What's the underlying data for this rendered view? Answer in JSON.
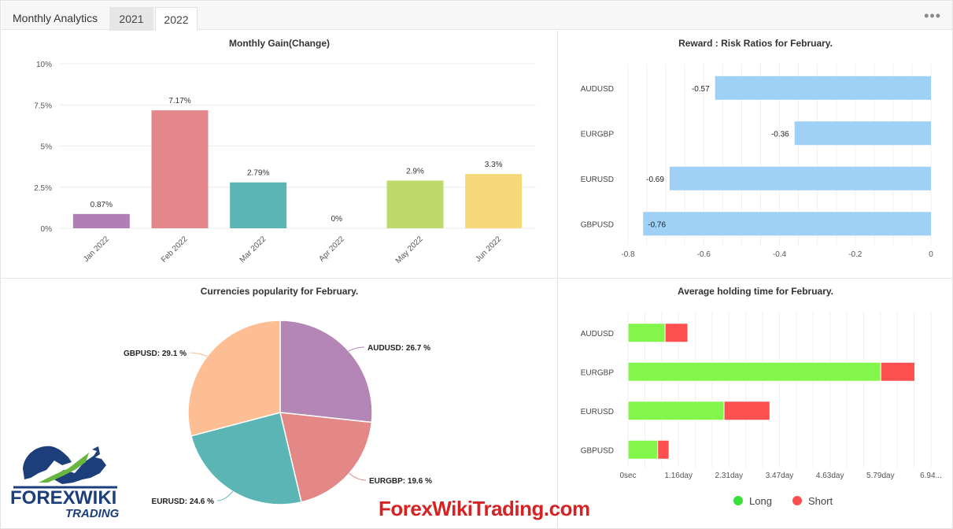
{
  "header": {
    "title": "Monthly Analytics",
    "tabs": [
      {
        "label": "2021",
        "active": false
      },
      {
        "label": "2022",
        "active": true
      }
    ],
    "more_icon": "more-horizontal-icon"
  },
  "panels": {
    "monthly_gain": {
      "title": "Monthly Gain(Change)"
    },
    "risk_ratio": {
      "title": "Reward : Risk Ratios for February."
    },
    "popularity": {
      "title": "Currencies popularity for February."
    },
    "holding": {
      "title": "Average holding time for February."
    }
  },
  "chart_data": [
    {
      "id": "monthly_gain",
      "type": "bar",
      "title": "Monthly Gain(Change)",
      "categories": [
        "Jan 2022",
        "Feb 2022",
        "Mar 2022",
        "Apr 2022",
        "May 2022",
        "Jun 2022"
      ],
      "values": [
        0.87,
        7.17,
        2.79,
        0,
        2.9,
        3.3
      ],
      "value_labels": [
        "0.87%",
        "7.17%",
        "2.79%",
        "0%",
        "2.9%",
        "3.3%"
      ],
      "colors": [
        "#b07fb6",
        "#e3878a",
        "#5bb5b4",
        "#cccccc",
        "#bfd96b",
        "#f5d87a"
      ],
      "ylim": [
        0,
        10
      ],
      "yticks": [
        0,
        2.5,
        5,
        7.5,
        10
      ],
      "ytick_labels": [
        "0%",
        "2.5%",
        "5%",
        "7.5%",
        "10%"
      ],
      "grid": true
    },
    {
      "id": "risk_ratio",
      "type": "bar",
      "orientation": "horizontal",
      "title": "Reward : Risk Ratios for February.",
      "categories": [
        "AUDUSD",
        "EURGBP",
        "EURUSD",
        "GBPUSD"
      ],
      "values": [
        -0.57,
        -0.36,
        -0.69,
        -0.76
      ],
      "value_labels": [
        "-0.57",
        "-0.36",
        "-0.69",
        "-0.76"
      ],
      "color": "#9fd0f5",
      "xlim": [
        -0.8,
        0
      ],
      "xticks": [
        -0.8,
        -0.6,
        -0.4,
        -0.2,
        0
      ],
      "xtick_labels": [
        "-0.8",
        "-0.6",
        "-0.4",
        "-0.2",
        "0"
      ],
      "grid": true
    },
    {
      "id": "popularity",
      "type": "pie",
      "title": "Currencies popularity for February.",
      "slices": [
        {
          "label": "AUDUSD: 26.7 %",
          "value": 26.7,
          "color": "#b386b5"
        },
        {
          "label": "EURGBP: 19.6 %",
          "value": 19.6,
          "color": "#e38886"
        },
        {
          "label": "EURUSD: 24.6 %",
          "value": 24.6,
          "color": "#5ab5b4"
        },
        {
          "label": "GBPUSD: 29.1 %",
          "value": 29.1,
          "color": "#febe94"
        }
      ]
    },
    {
      "id": "holding",
      "type": "bar",
      "orientation": "horizontal",
      "stacked": true,
      "title": "Average holding time for February.",
      "categories": [
        "AUDUSD",
        "EURGBP",
        "EURUSD",
        "GBPUSD"
      ],
      "series": [
        {
          "name": "Long",
          "values": [
            0.85,
            5.79,
            2.2,
            0.68
          ],
          "color": "#82f64a"
        },
        {
          "name": "Short",
          "values": [
            0.52,
            0.78,
            1.05,
            0.26
          ],
          "color": "#fe4f4f"
        }
      ],
      "xtick_labels": [
        "0sec",
        "1.16day",
        "2.31day",
        "3.47day",
        "4.63day",
        "5.79day",
        "6.94..."
      ],
      "xunit": "day",
      "xlim": [
        0,
        6.94
      ],
      "grid": true,
      "legend": "bottom"
    }
  ],
  "branding": {
    "watermark": "ForexWikiTrading.com",
    "logo": {
      "word1": "FOREX",
      "word2": "WIKI",
      "word3": "TRADING"
    }
  }
}
